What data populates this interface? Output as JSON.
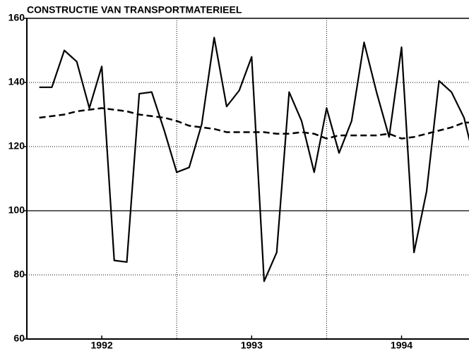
{
  "chart_data": {
    "type": "line",
    "title": "CONSTRUCTIE VAN TRANSPORTMATERIEEL",
    "x": [
      1992.083,
      1992.167,
      1992.25,
      1992.333,
      1992.417,
      1992.5,
      1992.583,
      1992.667,
      1992.75,
      1992.833,
      1992.917,
      1993.0,
      1993.083,
      1993.167,
      1993.25,
      1993.333,
      1993.417,
      1993.5,
      1993.583,
      1993.667,
      1993.75,
      1993.833,
      1993.917,
      1994.0,
      1994.083,
      1994.167,
      1994.25,
      1994.333,
      1994.417,
      1994.5,
      1994.583,
      1994.667,
      1994.75,
      1994.833,
      1994.917,
      1995.0
    ],
    "series": [
      {
        "color": "#000000",
        "style": "solid",
        "values": [
          138.5,
          138.5,
          150,
          146.5,
          132,
          145,
          84.5,
          84,
          136.5,
          137,
          125,
          112,
          113.5,
          127,
          154,
          132.5,
          137.5,
          148,
          78,
          87,
          137,
          128,
          112,
          132,
          118,
          128,
          152.5,
          137,
          123,
          151,
          87,
          106,
          140.5,
          137,
          129,
          113
        ]
      },
      {
        "color": "#000000",
        "style": "dashed",
        "values": [
          129,
          129.5,
          130,
          131,
          131.5,
          132,
          131.5,
          131,
          130,
          129.5,
          129,
          128,
          126.5,
          126,
          125.5,
          124.5,
          124.5,
          124.5,
          124.5,
          124,
          124,
          124.5,
          124,
          122.5,
          123.5,
          123.5,
          123.5,
          123.5,
          124,
          122.5,
          123,
          124,
          125,
          126,
          127.5,
          127.5
        ]
      }
    ],
    "xlim": [
      1992,
      1994.95
    ],
    "xticks": [
      {
        "value": 1992.5,
        "label": "1992"
      },
      {
        "value": 1993.5,
        "label": "1993"
      },
      {
        "value": 1994.5,
        "label": "1994"
      }
    ],
    "xgrid": [
      1993,
      1994
    ],
    "ylim": [
      60,
      160
    ],
    "yticks": [
      60,
      80,
      100,
      120,
      140,
      160
    ],
    "reference_line": 100,
    "grid": true
  }
}
